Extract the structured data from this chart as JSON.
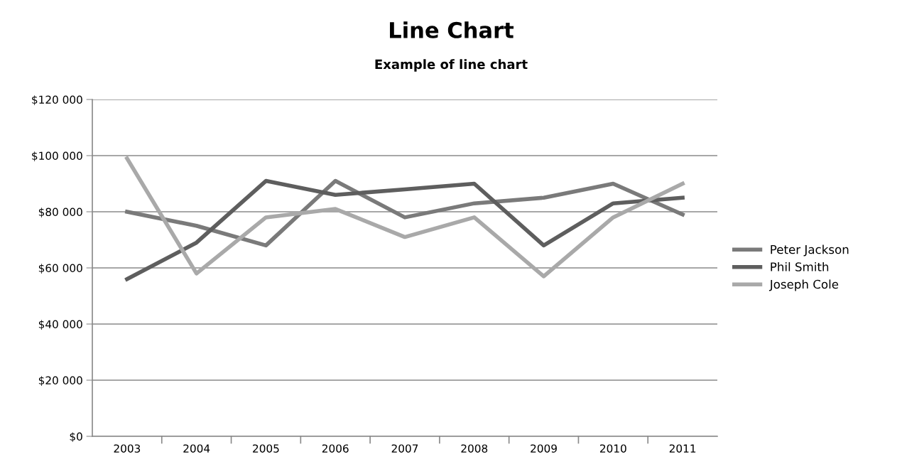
{
  "chart_data": {
    "type": "line",
    "title": "Line Chart",
    "subtitle": "Example of line chart",
    "categories": [
      "2003",
      "2004",
      "2005",
      "2006",
      "2007",
      "2008",
      "2009",
      "2010",
      "2011"
    ],
    "series": [
      {
        "name": "Peter Jackson",
        "color": "#7a7a7a",
        "values": [
          80000,
          75000,
          68000,
          91000,
          78000,
          83000,
          85000,
          90000,
          79000
        ]
      },
      {
        "name": "Phil Smith",
        "color": "#5e5e5e",
        "values": [
          56000,
          69000,
          91000,
          86000,
          88000,
          90000,
          68000,
          83000,
          85000
        ]
      },
      {
        "name": "Joseph Cole",
        "color": "#a9a9a9",
        "values": [
          99000,
          58000,
          78000,
          81000,
          71000,
          78000,
          57000,
          78000,
          90000
        ]
      }
    ],
    "ylim": [
      0,
      120000
    ],
    "yticks": [
      {
        "value": 0,
        "label": "$0"
      },
      {
        "value": 20000,
        "label": "$20 000"
      },
      {
        "value": 40000,
        "label": "$40 000"
      },
      {
        "value": 60000,
        "label": "$60 000"
      },
      {
        "value": 80000,
        "label": "$80 000"
      },
      {
        "value": 100000,
        "label": "$100 000"
      },
      {
        "value": 120000,
        "label": "$120 000"
      }
    ],
    "grid": "y",
    "legend": "right",
    "marker": "none",
    "line_style": "solid"
  }
}
